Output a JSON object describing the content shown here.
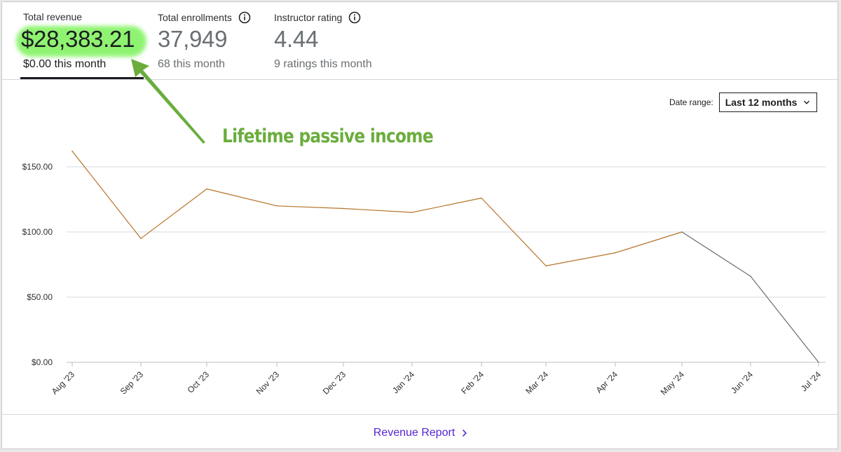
{
  "stats": {
    "revenue": {
      "label": "Total revenue",
      "value": "$28,383.21",
      "sub": "$0.00 this month"
    },
    "enrollments": {
      "label": "Total enrollments",
      "value": "37,949",
      "sub": "68 this month",
      "icon": "info-icon"
    },
    "rating": {
      "label": "Instructor rating",
      "value": "4.44",
      "sub": "9 ratings this month",
      "icon": "info-icon"
    }
  },
  "date_range": {
    "label": "Date range:",
    "selected": "Last 12 months",
    "icon": "chevron-down-icon"
  },
  "annotation": {
    "text": "Lifetime passive income",
    "color": "#6aad3d",
    "icon": "arrow-icon"
  },
  "footer": {
    "link": "Revenue Report",
    "icon": "chevron-right-icon"
  },
  "colors": {
    "series_complete": "#b8742b",
    "series_partial": "#6a6f73",
    "link": "#5624d0",
    "highlight": "#7cf25a"
  },
  "chart_data": {
    "type": "line",
    "categories": [
      "Aug '23",
      "Sep '23",
      "Oct '23",
      "Nov '23",
      "Dec '23",
      "Jan '24",
      "Feb '24",
      "Mar '24",
      "Apr '24",
      "May '24",
      "Jun '24",
      "Jul '24"
    ],
    "values": [
      162,
      95,
      133,
      120,
      118,
      115,
      126,
      74,
      84,
      100,
      66,
      0
    ],
    "ylim": [
      0,
      150
    ],
    "yticks": [
      0,
      50,
      100,
      150
    ],
    "ytick_labels": [
      "$0.00",
      "$50.00",
      "$100.00",
      "$150.00"
    ],
    "grid": true,
    "title": "",
    "xlabel": "",
    "ylabel": ""
  }
}
